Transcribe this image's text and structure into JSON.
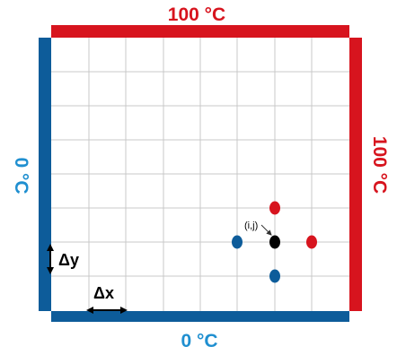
{
  "colors": {
    "hot": "#d7141e",
    "cold": "#0d5c9a",
    "cold_label": "#1f8fd0",
    "grid": "#c9c9c9",
    "node": "#000000"
  },
  "boundaries": {
    "top": "100 °C",
    "right": "100 °C",
    "bottom": "0 °C",
    "left": "0 °C"
  },
  "spacing": {
    "dy_label": "Δy",
    "dx_label": "Δx"
  },
  "stencil": {
    "center_label": "(i,j)",
    "center_color": "#000000",
    "up_color": "#d7141e",
    "right_color": "#d7141e",
    "left_color": "#0d5c9a",
    "down_color": "#0d5c9a"
  }
}
